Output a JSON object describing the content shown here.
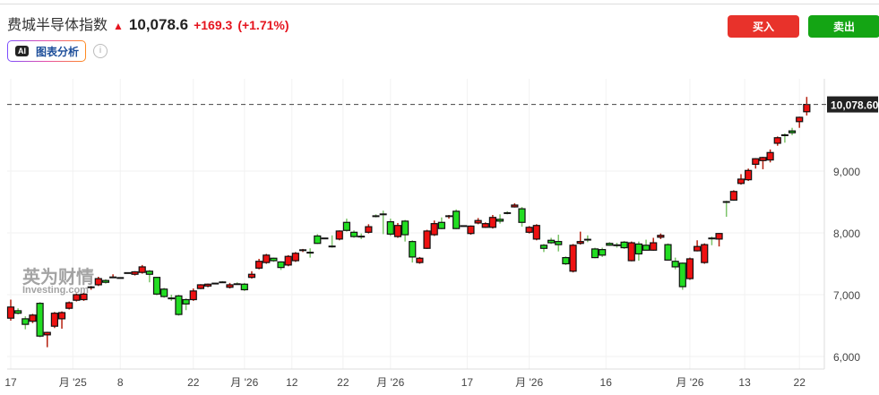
{
  "header": {
    "title": "费城半导体指数",
    "price": "10,078.6",
    "change": "+169.3",
    "change_pct": "(+1.71%)",
    "direction_icon": "arrow-up-icon"
  },
  "ai_button": {
    "badge": "AI",
    "label": "图表分析"
  },
  "info_icon": "i",
  "buttons": {
    "buy": "买入",
    "sell": "卖出"
  },
  "colors": {
    "up": "#ee1111",
    "down": "#22dd22",
    "buy": "#e8322b",
    "sell": "#14a514",
    "change": "#e5141e"
  },
  "watermark": {
    "cn": "英为财情",
    "en": "Investing.com"
  },
  "chart_data": {
    "type": "candlestick",
    "up_color": "red",
    "down_color": "green",
    "ylim": [
      5900,
      10400
    ],
    "y_ticks": [
      {
        "v": 6000,
        "label": "6,000"
      },
      {
        "v": 7000,
        "label": "7,000"
      },
      {
        "v": 8000,
        "label": "8,000"
      },
      {
        "v": 9000,
        "label": "9,000"
      }
    ],
    "last_price_label": "10,078.60",
    "last_price": 10078.6,
    "x_ticks": [
      {
        "i": 1,
        "label": "17"
      },
      {
        "i": 9.5,
        "label": "月 '25"
      },
      {
        "i": 16,
        "label": "8"
      },
      {
        "i": 26,
        "label": "22"
      },
      {
        "i": 33,
        "label": "月 '26"
      },
      {
        "i": 39.5,
        "label": "12"
      },
      {
        "i": 46.5,
        "label": "22"
      },
      {
        "i": 53,
        "label": "月 '26"
      },
      {
        "i": 63.5,
        "label": "17"
      },
      {
        "i": 72,
        "label": "月 '26"
      },
      {
        "i": 82.5,
        "label": "16"
      },
      {
        "i": 94,
        "label": "月 '26"
      },
      {
        "i": 101.5,
        "label": "13"
      },
      {
        "i": 109,
        "label": "22"
      }
    ],
    "ohlc": [
      [
        6620,
        6920,
        6580,
        6800
      ],
      [
        6740,
        6780,
        6680,
        6700
      ],
      [
        6610,
        6650,
        6440,
        6520
      ],
      [
        6570,
        6690,
        6540,
        6670
      ],
      [
        6860,
        6880,
        6310,
        6330
      ],
      [
        6350,
        6400,
        6150,
        6390
      ],
      [
        6490,
        6720,
        6460,
        6700
      ],
      [
        6610,
        6730,
        6450,
        6710
      ],
      [
        6780,
        6890,
        6760,
        6870
      ],
      [
        6910,
        7020,
        6890,
        7000
      ],
      [
        6920,
        7030,
        6900,
        7010
      ],
      [
        7100,
        7140,
        7080,
        7120
      ],
      [
        7160,
        7290,
        7140,
        7260
      ],
      [
        7230,
        7250,
        7180,
        7200
      ],
      [
        7270,
        7330,
        7270,
        7280
      ],
      [
        7270,
        7270,
        7270,
        7270
      ],
      [
        7350,
        7360,
        7340,
        7350
      ],
      [
        7330,
        7380,
        7310,
        7370
      ],
      [
        7360,
        7480,
        7340,
        7450
      ],
      [
        7380,
        7400,
        7200,
        7330
      ],
      [
        7280,
        7290,
        6990,
        7010
      ],
      [
        7090,
        7110,
        6950,
        6970
      ],
      [
        6960,
        7000,
        6900,
        6940
      ],
      [
        6980,
        7000,
        6660,
        6680
      ],
      [
        6920,
        6940,
        6750,
        6850
      ],
      [
        6920,
        7100,
        6900,
        7060
      ],
      [
        7100,
        7170,
        7090,
        7160
      ],
      [
        7140,
        7180,
        7120,
        7170
      ],
      [
        7180,
        7190,
        7170,
        7180
      ],
      [
        7210,
        7220,
        7190,
        7200
      ],
      [
        7120,
        7190,
        7100,
        7160
      ],
      [
        7180,
        7200,
        7160,
        7170
      ],
      [
        7170,
        7190,
        7060,
        7080
      ],
      [
        7280,
        7380,
        7260,
        7330
      ],
      [
        7430,
        7580,
        7410,
        7540
      ],
      [
        7520,
        7660,
        7500,
        7640
      ],
      [
        7590,
        7600,
        7530,
        7550
      ],
      [
        7530,
        7540,
        7400,
        7440
      ],
      [
        7480,
        7640,
        7460,
        7620
      ],
      [
        7550,
        7690,
        7530,
        7670
      ],
      [
        7700,
        7740,
        7690,
        7720
      ],
      [
        7680,
        7750,
        7600,
        7680
      ],
      [
        7950,
        7980,
        7820,
        7830
      ],
      [
        7910,
        7910,
        7910,
        7910
      ],
      [
        7780,
        7960,
        7760,
        7780
      ],
      [
        7900,
        8040,
        7880,
        8030
      ],
      [
        8170,
        8230,
        8020,
        8040
      ],
      [
        8010,
        8040,
        7920,
        7940
      ],
      [
        7940,
        7990,
        7900,
        7940
      ],
      [
        8010,
        8140,
        7990,
        8100
      ],
      [
        8270,
        8300,
        8250,
        8270
      ],
      [
        8300,
        8360,
        7980,
        8300
      ],
      [
        8180,
        8230,
        7950,
        7980
      ],
      [
        7940,
        8160,
        7920,
        8120
      ],
      [
        8190,
        8210,
        7860,
        7970
      ],
      [
        7860,
        7880,
        7520,
        7610
      ],
      [
        7520,
        7610,
        7500,
        7590
      ],
      [
        7750,
        8050,
        7740,
        8030
      ],
      [
        7970,
        8200,
        7950,
        8150
      ],
      [
        8170,
        8250,
        8060,
        8070
      ],
      [
        8250,
        8290,
        8230,
        8270
      ],
      [
        8350,
        8380,
        8060,
        8070
      ],
      [
        8110,
        8110,
        8110,
        8110
      ],
      [
        7990,
        8120,
        7970,
        8110
      ],
      [
        8160,
        8240,
        8140,
        8200
      ],
      [
        8090,
        8170,
        8080,
        8150
      ],
      [
        8090,
        8290,
        8070,
        8250
      ],
      [
        8220,
        8300,
        8150,
        8190
      ],
      [
        8320,
        8350,
        8300,
        8320
      ],
      [
        8420,
        8480,
        8410,
        8450
      ],
      [
        8390,
        8420,
        8100,
        8170
      ],
      [
        8010,
        8110,
        7990,
        8090
      ],
      [
        7900,
        8140,
        7880,
        8120
      ],
      [
        7800,
        7820,
        7690,
        7750
      ],
      [
        7880,
        7920,
        7820,
        7840
      ],
      [
        7860,
        7970,
        7700,
        7810
      ],
      [
        7600,
        7620,
        7480,
        7500
      ],
      [
        7380,
        7820,
        7360,
        7800
      ],
      [
        7830,
        8020,
        7810,
        7860
      ],
      [
        7890,
        7960,
        7850,
        7890
      ],
      [
        7740,
        7760,
        7590,
        7600
      ],
      [
        7730,
        7760,
        7610,
        7640
      ],
      [
        7830,
        7850,
        7790,
        7800
      ],
      [
        7800,
        7840,
        7760,
        7800
      ],
      [
        7850,
        7870,
        7740,
        7760
      ],
      [
        7550,
        7860,
        7540,
        7840
      ],
      [
        7820,
        7860,
        7550,
        7660
      ],
      [
        7800,
        7890,
        7720,
        7720
      ],
      [
        7720,
        7920,
        7710,
        7840
      ],
      [
        7930,
        7990,
        7900,
        7960
      ],
      [
        7810,
        7830,
        7550,
        7560
      ],
      [
        7540,
        7600,
        7410,
        7450
      ],
      [
        7510,
        7520,
        7080,
        7130
      ],
      [
        7260,
        7600,
        7240,
        7580
      ],
      [
        7710,
        7880,
        7700,
        7780
      ],
      [
        7520,
        7830,
        7500,
        7810
      ],
      [
        7910,
        7940,
        7800,
        7910
      ],
      [
        7900,
        8000,
        7780,
        7990
      ],
      [
        8500,
        8520,
        8260,
        8500
      ],
      [
        8530,
        8690,
        8520,
        8670
      ],
      [
        8800,
        8950,
        8780,
        8870
      ],
      [
        8860,
        9040,
        8840,
        9010
      ],
      [
        9110,
        9210,
        9040,
        9200
      ],
      [
        9170,
        9230,
        9030,
        9220
      ],
      [
        9180,
        9350,
        9140,
        9300
      ],
      [
        9450,
        9560,
        9410,
        9540
      ],
      [
        9580,
        9610,
        9460,
        9580
      ],
      [
        9650,
        9700,
        9580,
        9620
      ],
      [
        9800,
        9880,
        9700,
        9870
      ],
      [
        9960,
        10200,
        9900,
        10078.6
      ]
    ]
  }
}
